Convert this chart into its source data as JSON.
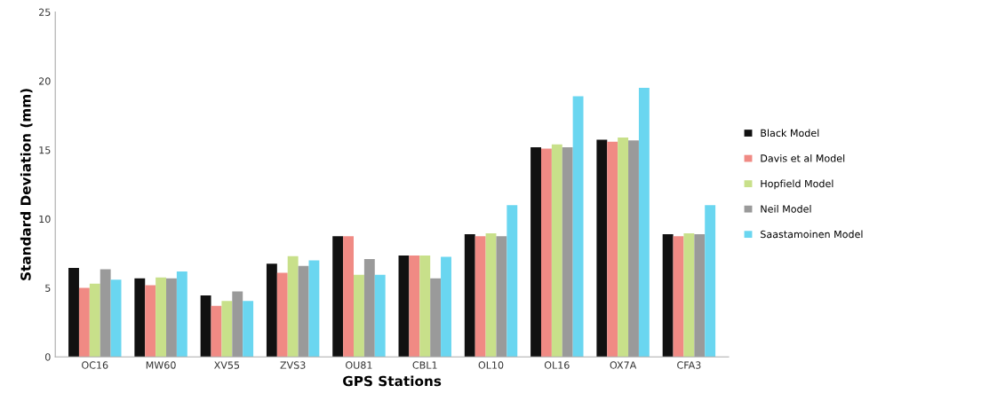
{
  "chart_data": {
    "type": "bar",
    "xlabel": "GPS Stations",
    "ylabel": "Standard Deviation (mm)",
    "categories": [
      "OC16",
      "MW60",
      "XV55",
      "ZVS3",
      "OU81",
      "CBL1",
      "OL10",
      "OL16",
      "OX7A",
      "CFA3"
    ],
    "series": [
      {
        "name": "Black Model",
        "color": "#111111",
        "values": [
          6.45,
          5.7,
          4.45,
          6.75,
          8.75,
          7.35,
          8.9,
          15.2,
          15.75,
          8.9
        ]
      },
      {
        "name": "Davis et al Model",
        "color": "#f08a84",
        "values": [
          5.0,
          5.2,
          3.7,
          6.1,
          8.75,
          7.35,
          8.75,
          15.1,
          15.6,
          8.75
        ]
      },
      {
        "name": "Hopfield Model",
        "color": "#c8e08a",
        "values": [
          5.3,
          5.75,
          4.05,
          7.3,
          5.95,
          7.35,
          8.95,
          15.4,
          15.9,
          8.95
        ]
      },
      {
        "name": "Neil Model",
        "color": "#9a9a9a",
        "values": [
          6.35,
          5.7,
          4.75,
          6.6,
          7.1,
          5.7,
          8.75,
          15.2,
          15.7,
          8.9
        ]
      },
      {
        "name": "Saastamoinen Model",
        "color": "#6ad6f0",
        "values": [
          5.6,
          6.2,
          4.05,
          7.0,
          5.95,
          7.25,
          11.0,
          18.9,
          19.5,
          11.0
        ]
      }
    ],
    "ylim": [
      0,
      25
    ],
    "yticks": [
      0,
      5,
      10,
      15,
      20,
      25
    ],
    "grid": false,
    "legend": "right"
  }
}
